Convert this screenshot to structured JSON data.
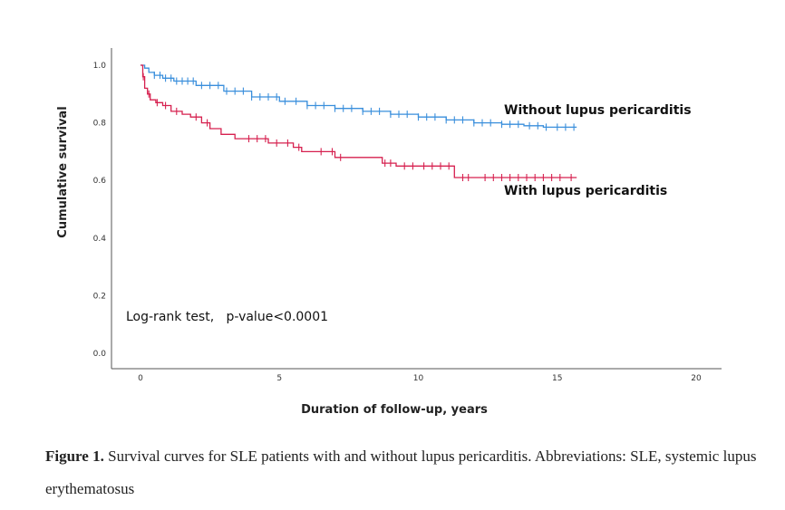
{
  "chart_data": {
    "type": "line",
    "subtype": "kaplan-meier",
    "xlabel": "Duration of follow-up, years",
    "ylabel": "Cumulative survival",
    "xlim": [
      -1,
      21
    ],
    "ylim": [
      0.0,
      1.0
    ],
    "xticks": [
      "0",
      "5",
      "10",
      "15",
      "20"
    ],
    "yticks": [
      "0.0",
      "0.2",
      "0.4",
      "0.6",
      "0.8",
      "1.0"
    ],
    "annotation": "Log-rank test,   p-value<0.0001",
    "series": [
      {
        "name": "Without lupus pericarditis",
        "color": "#3a8fdc",
        "points": [
          [
            0,
            1.0
          ],
          [
            0.15,
            0.99
          ],
          [
            0.3,
            0.975
          ],
          [
            0.5,
            0.965
          ],
          [
            0.8,
            0.955
          ],
          [
            1.2,
            0.945
          ],
          [
            2,
            0.93
          ],
          [
            3,
            0.91
          ],
          [
            4,
            0.89
          ],
          [
            5,
            0.875
          ],
          [
            6,
            0.86
          ],
          [
            7,
            0.85
          ],
          [
            8,
            0.84
          ],
          [
            9,
            0.83
          ],
          [
            10,
            0.82
          ],
          [
            11,
            0.81
          ],
          [
            12,
            0.8
          ],
          [
            13,
            0.795
          ],
          [
            13.8,
            0.79
          ],
          [
            14.5,
            0.785
          ],
          [
            15.7,
            0.785
          ]
        ],
        "censor_x": [
          0.5,
          0.7,
          0.9,
          1.1,
          1.3,
          1.5,
          1.7,
          1.9,
          2.2,
          2.5,
          2.8,
          3.1,
          3.4,
          3.7,
          4.0,
          4.3,
          4.6,
          4.9,
          5.2,
          5.6,
          6.0,
          6.3,
          6.6,
          7.0,
          7.3,
          7.6,
          8.0,
          8.3,
          8.6,
          9.0,
          9.3,
          9.6,
          10.0,
          10.3,
          10.6,
          11.0,
          11.3,
          11.6,
          12.0,
          12.3,
          12.6,
          13.0,
          13.3,
          13.6,
          14.0,
          14.3,
          14.6,
          15.0,
          15.3,
          15.6
        ]
      },
      {
        "name": "With lupus pericarditis",
        "color": "#d6204f",
        "points": [
          [
            0,
            1.0
          ],
          [
            0.08,
            0.96
          ],
          [
            0.15,
            0.92
          ],
          [
            0.25,
            0.9
          ],
          [
            0.35,
            0.88
          ],
          [
            0.55,
            0.87
          ],
          [
            0.8,
            0.86
          ],
          [
            1.1,
            0.84
          ],
          [
            1.5,
            0.83
          ],
          [
            1.8,
            0.82
          ],
          [
            2.2,
            0.8
          ],
          [
            2.5,
            0.78
          ],
          [
            2.9,
            0.76
          ],
          [
            3.4,
            0.745
          ],
          [
            4.6,
            0.73
          ],
          [
            5.5,
            0.715
          ],
          [
            5.8,
            0.7
          ],
          [
            6.0,
            0.7
          ],
          [
            7,
            0.68
          ],
          [
            8,
            0.68
          ],
          [
            8.7,
            0.66
          ],
          [
            9.2,
            0.65
          ],
          [
            10.0,
            0.65
          ],
          [
            11.0,
            0.65
          ],
          [
            11.3,
            0.61
          ],
          [
            15.7,
            0.61
          ]
        ],
        "censor_x": [
          0.1,
          0.3,
          0.6,
          0.9,
          1.3,
          2.0,
          2.4,
          3.9,
          4.2,
          4.5,
          4.9,
          5.3,
          5.7,
          6.5,
          6.9,
          7.2,
          8.8,
          9.0,
          9.5,
          9.8,
          10.2,
          10.5,
          10.8,
          11.1,
          11.6,
          11.8,
          12.4,
          12.7,
          13.0,
          13.3,
          13.6,
          13.9,
          14.2,
          14.5,
          14.8,
          15.1,
          15.5
        ]
      }
    ]
  },
  "caption": {
    "label": "Figure 1.",
    "text": " Survival curves for SLE patients with and without lupus pericarditis. Abbreviations: SLE, systemic lupus erythematosus"
  }
}
